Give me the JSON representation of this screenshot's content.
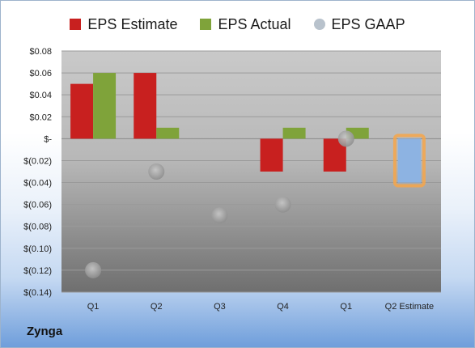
{
  "legend": {
    "estimate_label": "EPS Estimate",
    "actual_label": "EPS Actual",
    "gaap_label": "EPS GAAP"
  },
  "company": "Zynga",
  "colors": {
    "estimate": "#c8201f",
    "actual": "#7fa33a",
    "gaap": "#a6a6a6",
    "forecast": "#8db3e2",
    "forecast_outline": "#f6a64a"
  },
  "chart_data": {
    "type": "bar",
    "categories": [
      "Q1",
      "Q2",
      "Q3",
      "Q4",
      "Q1",
      "Q2 Estimate"
    ],
    "series": [
      {
        "name": "EPS Estimate",
        "values": [
          0.05,
          0.06,
          null,
          -0.03,
          -0.03,
          -0.04
        ]
      },
      {
        "name": "EPS Actual",
        "values": [
          0.06,
          0.01,
          null,
          0.01,
          0.01,
          null
        ]
      },
      {
        "name": "EPS GAAP",
        "type": "scatter",
        "values": [
          -0.12,
          -0.03,
          -0.07,
          -0.06,
          0.0,
          null
        ]
      }
    ],
    "highlighted_category": "Q2 Estimate",
    "ylim": [
      -0.14,
      0.08
    ],
    "yticks": [
      0.08,
      0.06,
      0.04,
      0.02,
      0,
      -0.02,
      -0.04,
      -0.06,
      -0.08,
      -0.1,
      -0.12,
      -0.14
    ],
    "ytick_labels": [
      "$0.08",
      "$0.06",
      "$0.04",
      "$0.02",
      "$-",
      "$(0.02)",
      "$(0.04)",
      "$(0.06)",
      "$(0.08)",
      "$(0.10)",
      "$(0.12)",
      "$(0.14)"
    ],
    "legend_position": "top",
    "grid": true
  }
}
